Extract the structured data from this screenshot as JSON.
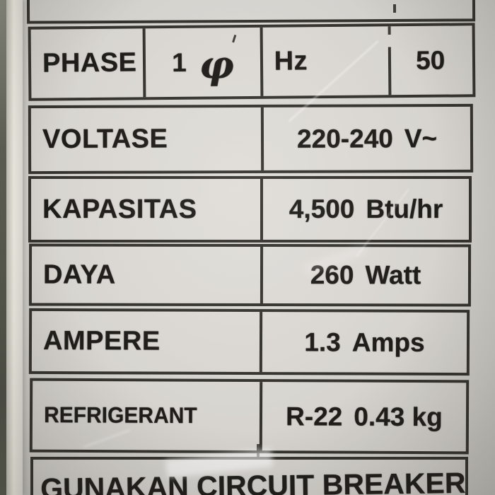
{
  "plate": {
    "rows": [
      {
        "label": "PHASE",
        "value_main": "1",
        "value_unit": "φ",
        "freq_label": "Hz",
        "freq_value": "50"
      },
      {
        "label": "VOLTASE",
        "value_main": "220-240",
        "value_unit": "V~"
      },
      {
        "label": "KAPASITAS",
        "value_main": "4,500",
        "value_unit": "Btu/hr"
      },
      {
        "label": "DAYA",
        "value_main": "260",
        "value_unit": "Watt"
      },
      {
        "label": "AMPERE",
        "value_main": "1.3",
        "value_unit": "Amps"
      },
      {
        "label": "REFRIGERANT",
        "value_main": "R-22",
        "value_unit": "0.43 kg"
      }
    ],
    "footer_text": "GUNAKAN CIRCUIT BREAKER"
  },
  "colors": {
    "label_background": "#d6d4cf",
    "grid_line": "#26251f",
    "text": "#1e1d1a",
    "edge_highlight": "#f0ede4",
    "edge_dark": "#4e4f45"
  }
}
